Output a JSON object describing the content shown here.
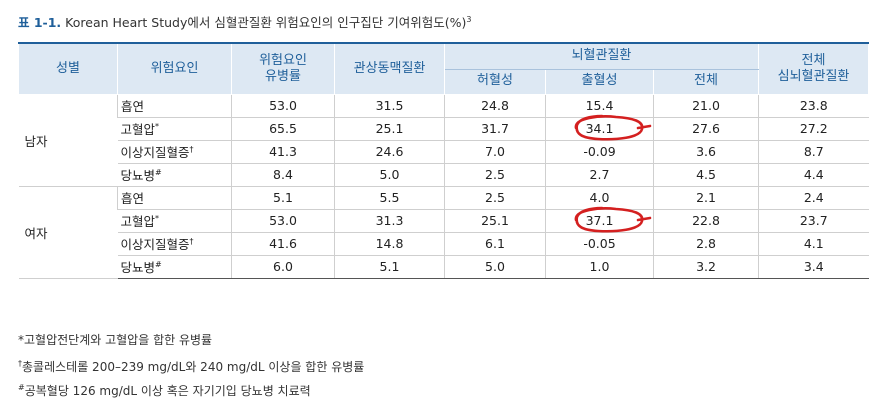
{
  "caption": {
    "number": "표 1-1.",
    "title": "Korean Heart Study에서 심혈관질환 위험요인의 인구집단 기여위험도(%)",
    "sup": "3"
  },
  "table": {
    "headers": {
      "sex": "성별",
      "factor": "위험요인",
      "prevalence": [
        "위험요인",
        "유병률"
      ],
      "chd": "관상동맥질환",
      "stroke_group": "뇌혈관질환",
      "ischemic": "허혈성",
      "hemorrhagic": "출혈성",
      "stroke_total": "전체",
      "total": [
        "전체",
        "심뇌혈관질환"
      ]
    },
    "groups": [
      {
        "sex": "남자",
        "rows": [
          {
            "factor": "흡연",
            "mark": "",
            "values": [
              "53.0",
              "31.5",
              "24.8",
              "15.4",
              "21.0",
              "23.8"
            ]
          },
          {
            "factor": "고혈압",
            "mark": "*",
            "values": [
              "65.5",
              "25.1",
              "31.7",
              "34.1",
              "27.6",
              "27.2"
            ]
          },
          {
            "factor": "이상지질혈증",
            "mark": "†",
            "values": [
              "41.3",
              "24.6",
              "7.0",
              "-0.09",
              "3.6",
              "8.7"
            ]
          },
          {
            "factor": "당뇨병",
            "mark": "#",
            "values": [
              "8.4",
              "5.0",
              "2.5",
              "2.7",
              "4.5",
              "4.4"
            ]
          }
        ]
      },
      {
        "sex": "여자",
        "rows": [
          {
            "factor": "흡연",
            "mark": "",
            "values": [
              "5.1",
              "5.5",
              "2.5",
              "4.0",
              "2.1",
              "2.4"
            ]
          },
          {
            "factor": "고혈압",
            "mark": "*",
            "values": [
              "53.0",
              "31.3",
              "25.1",
              "37.1",
              "22.8",
              "23.7"
            ]
          },
          {
            "factor": "이상지질혈증",
            "mark": "†",
            "values": [
              "41.6",
              "14.8",
              "6.1",
              "-0.05",
              "2.8",
              "4.1"
            ]
          },
          {
            "factor": "당뇨병",
            "mark": "#",
            "values": [
              "6.0",
              "5.1",
              "5.0",
              "1.0",
              "3.2",
              "3.4"
            ]
          }
        ]
      }
    ]
  },
  "annotation_color": "#d42020",
  "notes": [
    {
      "mark": "*",
      "text": "고혈압전단계와 고혈압을 합한 유병률"
    },
    {
      "mark": "†",
      "text": "총콜레스테롤 200–239 mg/dL와 240 mg/dL 이상을 합한 유병률"
    },
    {
      "mark": "#",
      "text": "공복혈당 126 mg/dL 이상 혹은 자기기입 당뇨병 치료력"
    }
  ]
}
